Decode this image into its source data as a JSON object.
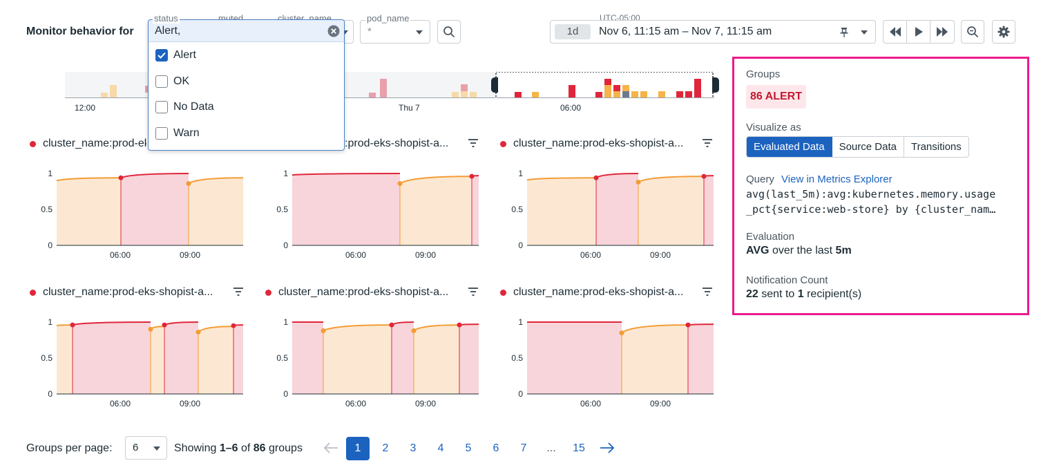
{
  "header": {
    "monitor_label": "Monitor behavior for",
    "filters": [
      {
        "label": "status",
        "value": "Alert,"
      },
      {
        "label": "muted",
        "value": ""
      },
      {
        "label": "cluster_name",
        "value": ""
      },
      {
        "label": "pod_name",
        "value": "*"
      }
    ],
    "timezone": "UTC-05:00",
    "time_chip": "1d",
    "time_range": "Nov 6, 11:15 am – Nov 7, 11:15 am"
  },
  "dropdown": {
    "input_value": "Alert,",
    "options": [
      {
        "label": "Alert",
        "checked": true
      },
      {
        "label": "OK",
        "checked": false
      },
      {
        "label": "No Data",
        "checked": false
      },
      {
        "label": "Warn",
        "checked": false
      }
    ]
  },
  "timeline": {
    "labels": [
      "12:00",
      "Thu 7",
      "06:00"
    ]
  },
  "groups": [
    {
      "title": "cluster_name:prod-eks-shopist-a..."
    },
    {
      "title": "cluster_name:prod-eks-shopist-a..."
    },
    {
      "title": "cluster_name:prod-eks-shopist-a..."
    },
    {
      "title": "cluster_name:prod-eks-shopist-a..."
    },
    {
      "title": "cluster_name:prod-eks-shopist-a..."
    },
    {
      "title": "cluster_name:prod-eks-shopist-a..."
    }
  ],
  "chart_axis": {
    "y_ticks": [
      "1",
      "0.5",
      "0"
    ],
    "x_ticks": [
      "06:00",
      "09:00"
    ]
  },
  "panel": {
    "groups_label": "Groups",
    "alert_badge": "86 ALERT",
    "visualize_label": "Visualize as",
    "visualize_options": [
      "Evaluated Data",
      "Source Data",
      "Transitions"
    ],
    "query_label": "Query",
    "query_link": "View in Metrics Explorer",
    "query_line1": "avg(last_5m):avg:kubernetes.memory.usage",
    "query_line2": "_pct{service:web-store} by {cluster_nam…",
    "evaluation_label": "Evaluation",
    "evaluation_prefix": "AVG",
    "evaluation_mid": "over the last",
    "evaluation_window": "5m",
    "notification_label": "Notification Count",
    "notification_count": "22",
    "notification_mid": "sent to",
    "notification_recipients": "1",
    "notification_suffix": "recipient(s)"
  },
  "pagination": {
    "per_page_label": "Groups per page:",
    "per_page_value": "6",
    "showing_prefix": "Showing",
    "showing_range": "1–6",
    "showing_of": "of",
    "showing_total": "86",
    "showing_suffix": "groups",
    "pages": [
      "1",
      "2",
      "3",
      "4",
      "5",
      "6",
      "7",
      "...",
      "15"
    ],
    "current_page": "1"
  },
  "colors": {
    "alert": "#e0263a",
    "warn": "#f39c34",
    "alert_fill": "#f7d5da",
    "warn_fill": "#fce8d2",
    "accent": "#1c63c0",
    "highlight": "#ec1a8c"
  }
}
